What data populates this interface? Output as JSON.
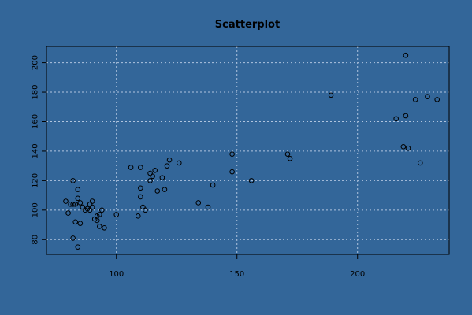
{
  "chart_data": {
    "type": "scatter",
    "title": "Scatterplot",
    "xlabel": "",
    "ylabel": "",
    "xlim": [
      71,
      238
    ],
    "ylim": [
      70,
      211
    ],
    "x_ticks": [
      100,
      150,
      200
    ],
    "y_ticks": [
      80,
      100,
      120,
      140,
      160,
      180,
      200
    ],
    "grid": true,
    "colors": {
      "background": "#336699",
      "point": "#000000",
      "grid": "#b0c4de"
    },
    "points": [
      [
        79,
        106
      ],
      [
        80,
        98
      ],
      [
        81,
        104
      ],
      [
        82,
        120
      ],
      [
        82,
        104
      ],
      [
        82,
        81
      ],
      [
        83,
        104
      ],
      [
        83,
        92
      ],
      [
        84,
        75
      ],
      [
        84,
        114
      ],
      [
        84,
        108
      ],
      [
        85,
        105
      ],
      [
        85,
        91
      ],
      [
        86,
        102
      ],
      [
        87,
        100
      ],
      [
        88,
        101
      ],
      [
        89,
        104
      ],
      [
        89,
        100
      ],
      [
        90,
        106
      ],
      [
        90,
        102
      ],
      [
        91,
        94
      ],
      [
        92,
        93
      ],
      [
        92,
        96
      ],
      [
        93,
        89
      ],
      [
        93,
        97
      ],
      [
        94,
        100
      ],
      [
        95,
        88
      ],
      [
        100,
        97
      ],
      [
        106,
        129
      ],
      [
        109,
        96
      ],
      [
        110,
        129
      ],
      [
        110,
        115
      ],
      [
        110,
        109
      ],
      [
        111,
        102
      ],
      [
        112,
        100
      ],
      [
        114,
        120
      ],
      [
        114,
        125
      ],
      [
        115,
        123
      ],
      [
        116,
        127
      ],
      [
        117,
        113
      ],
      [
        119,
        122
      ],
      [
        120,
        114
      ],
      [
        121,
        130
      ],
      [
        122,
        134
      ],
      [
        126,
        132
      ],
      [
        134,
        105
      ],
      [
        138,
        102
      ],
      [
        140,
        117
      ],
      [
        148,
        138
      ],
      [
        148,
        126
      ],
      [
        156,
        120
      ],
      [
        171,
        138
      ],
      [
        172,
        135
      ],
      [
        189,
        178
      ],
      [
        216,
        162
      ],
      [
        219,
        143
      ],
      [
        220,
        164
      ],
      [
        220,
        205
      ],
      [
        221,
        142
      ],
      [
        224,
        175
      ],
      [
        226,
        132
      ],
      [
        229,
        177
      ],
      [
        233,
        175
      ]
    ]
  }
}
